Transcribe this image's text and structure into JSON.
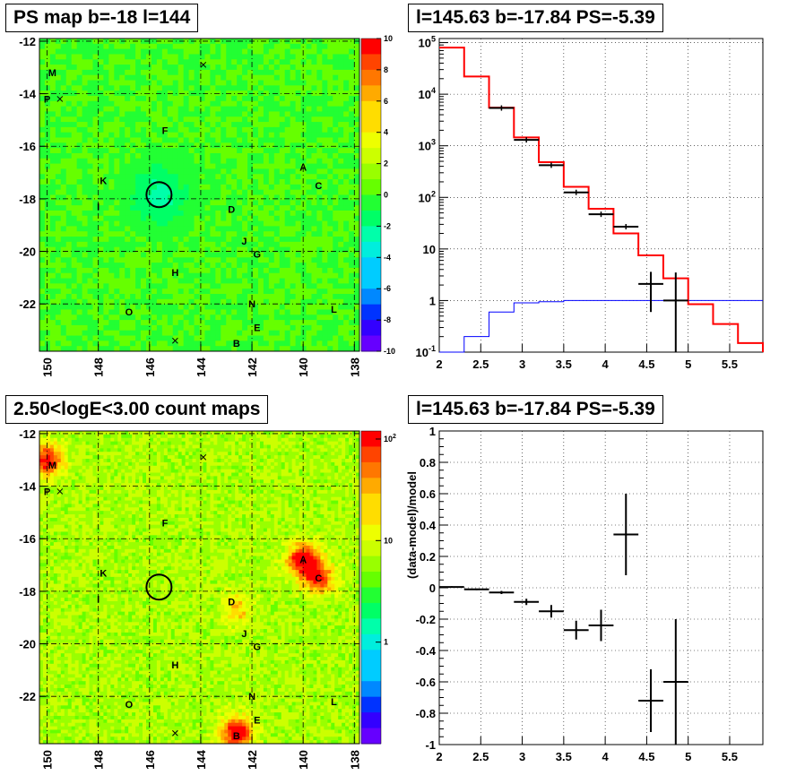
{
  "chart_data": [
    {
      "type": "heatmap",
      "title": "PS map b=-18 l=144",
      "x_ticks": [
        "150",
        "148",
        "146",
        "144",
        "142",
        "140",
        "138"
      ],
      "y_ticks": [
        "-12",
        "-14",
        "-16",
        "-18",
        "-20",
        "-22"
      ],
      "xlim": [
        150.3,
        137.8
      ],
      "ylim": [
        -23.8,
        -11.9
      ],
      "colorbar": {
        "ticks": [
          "10",
          "8",
          "6",
          "4",
          "2",
          "0",
          "-2",
          "-4",
          "-6",
          "-8",
          "-10"
        ],
        "range": [
          -10,
          10
        ]
      },
      "sources": [
        {
          "name": "M",
          "l": 149.8,
          "b": -13.2
        },
        {
          "name": "P",
          "l": 150.0,
          "b": -14.2
        },
        {
          "name": "F",
          "l": 145.4,
          "b": -15.4
        },
        {
          "name": "A",
          "l": 140.0,
          "b": -16.8
        },
        {
          "name": "C",
          "l": 139.4,
          "b": -17.5
        },
        {
          "name": "K",
          "l": 147.8,
          "b": -17.3
        },
        {
          "name": "I",
          "l": 148.0,
          "b": -18.3
        },
        {
          "name": "D",
          "l": 142.8,
          "b": -18.4
        },
        {
          "name": "J",
          "l": 142.3,
          "b": -19.6
        },
        {
          "name": "G",
          "l": 141.8,
          "b": -20.1
        },
        {
          "name": "H",
          "l": 145.0,
          "b": -20.8
        },
        {
          "name": "N",
          "l": 142.0,
          "b": -22.0
        },
        {
          "name": "L",
          "l": 138.8,
          "b": -22.2
        },
        {
          "name": "O",
          "l": 146.8,
          "b": -22.3
        },
        {
          "name": "E",
          "l": 141.8,
          "b": -22.9
        },
        {
          "name": "B",
          "l": 142.6,
          "b": -23.5
        }
      ],
      "crosses": [
        {
          "l": 143.9,
          "b": -12.9
        },
        {
          "l": 149.5,
          "b": -14.2
        },
        {
          "l": 145.0,
          "b": -23.4
        }
      ],
      "circle": {
        "l": 145.63,
        "b": -17.84
      }
    },
    {
      "type": "line",
      "title": "l=145.63 b=-17.84 PS=-5.39",
      "log_y": true,
      "xlim": [
        2,
        5.9
      ],
      "ylim": [
        0.1,
        120000
      ],
      "x_ticks": [
        "2",
        "2.5",
        "3",
        "3.5",
        "4",
        "4.5",
        "5",
        "5.5"
      ],
      "y_ticks": [
        "10^-1",
        "1",
        "10",
        "10^2",
        "10^3",
        "10^4",
        "10^5"
      ],
      "bin_edges": [
        2.0,
        2.3,
        2.6,
        2.9,
        3.2,
        3.5,
        3.8,
        4.1,
        4.4,
        4.7,
        5.0,
        5.3,
        5.6,
        5.9
      ],
      "series": [
        {
          "values": [
            80000,
            22000,
            5500,
            1450,
            480,
            160,
            60,
            20,
            7.5,
            2.7,
            0.85,
            0.35,
            0.15
          ],
          "color": "#ff0000"
        },
        {
          "values": [
            0.1,
            0.2,
            0.6,
            0.9,
            0.95,
            1,
            1,
            1,
            1,
            1,
            1,
            1,
            1
          ],
          "color": "#0000ff"
        },
        {
          "values": [
            null,
            null,
            5400,
            1300,
            420,
            125,
            47,
            27,
            2.1,
            1.0,
            null,
            null,
            null
          ],
          "yerr_lo": [
            0,
            0,
            0,
            0,
            0,
            0,
            0,
            0,
            1.5,
            0.9,
            0,
            0,
            0
          ],
          "yerr_hi": [
            0,
            0,
            0,
            0,
            0,
            0,
            0,
            0,
            1.5,
            2.5,
            0,
            0,
            0
          ],
          "color": "#000000"
        }
      ]
    },
    {
      "type": "heatmap",
      "title": "2.50<logE<3.00 count maps",
      "x_ticks": [
        "150",
        "148",
        "146",
        "144",
        "142",
        "140",
        "138"
      ],
      "y_ticks": [
        "-12",
        "-14",
        "-16",
        "-18",
        "-20",
        "-22"
      ],
      "xlim": [
        150.3,
        137.8
      ],
      "ylim": [
        -23.8,
        -11.9
      ],
      "log_color": true,
      "colorbar": {
        "ticks": [
          "10^2",
          "10",
          "1"
        ],
        "range": [
          0.1,
          120
        ]
      },
      "hotspots": [
        {
          "l": 140.0,
          "b": -16.8,
          "strength": 1.0
        },
        {
          "l": 139.4,
          "b": -17.5,
          "strength": 0.8
        },
        {
          "l": 150.0,
          "b": -13.0,
          "strength": 0.9
        },
        {
          "l": 142.6,
          "b": -23.4,
          "strength": 1.0
        },
        {
          "l": 142.6,
          "b": -18.7,
          "strength": 0.4
        }
      ],
      "sources": [
        {
          "name": "M",
          "l": 149.8,
          "b": -13.2
        },
        {
          "name": "P",
          "l": 150.0,
          "b": -14.2
        },
        {
          "name": "F",
          "l": 145.4,
          "b": -15.4
        },
        {
          "name": "A",
          "l": 140.0,
          "b": -16.8
        },
        {
          "name": "C",
          "l": 139.4,
          "b": -17.5
        },
        {
          "name": "K",
          "l": 147.8,
          "b": -17.3
        },
        {
          "name": "I",
          "l": 148.0,
          "b": -18.3
        },
        {
          "name": "D",
          "l": 142.8,
          "b": -18.4
        },
        {
          "name": "J",
          "l": 142.3,
          "b": -19.6
        },
        {
          "name": "G",
          "l": 141.8,
          "b": -20.1
        },
        {
          "name": "H",
          "l": 145.0,
          "b": -20.8
        },
        {
          "name": "N",
          "l": 142.0,
          "b": -22.0
        },
        {
          "name": "L",
          "l": 138.8,
          "b": -22.2
        },
        {
          "name": "O",
          "l": 146.8,
          "b": -22.3
        },
        {
          "name": "E",
          "l": 141.8,
          "b": -22.9
        },
        {
          "name": "B",
          "l": 142.6,
          "b": -23.5
        }
      ],
      "crosses": [
        {
          "l": 143.9,
          "b": -12.9
        },
        {
          "l": 149.5,
          "b": -14.2
        },
        {
          "l": 145.0,
          "b": -23.4
        }
      ],
      "circle": {
        "l": 145.63,
        "b": -17.84
      }
    },
    {
      "type": "scatter",
      "title": "l=145.63 b=-17.84 PS=-5.39",
      "ylabel": "(data-model)/model",
      "xlim": [
        2,
        5.9
      ],
      "ylim": [
        -1,
        1
      ],
      "x_ticks": [
        "2",
        "2.5",
        "3",
        "3.5",
        "4",
        "4.5",
        "5",
        "5.5"
      ],
      "y_ticks": [
        "1",
        "0.8",
        "0.6",
        "0.4",
        "0.2",
        "0",
        "-0.2",
        "-0.4",
        "-0.6",
        "-0.8",
        "-1"
      ],
      "points": [
        {
          "x": 2.15,
          "y": 0.005,
          "xerr": 0.15,
          "yerr": 0.005
        },
        {
          "x": 2.45,
          "y": -0.01,
          "xerr": 0.15,
          "yerr": 0.005
        },
        {
          "x": 2.75,
          "y": -0.03,
          "xerr": 0.15,
          "yerr": 0.01
        },
        {
          "x": 3.05,
          "y": -0.09,
          "xerr": 0.15,
          "yerr": 0.02
        },
        {
          "x": 3.35,
          "y": -0.15,
          "xerr": 0.15,
          "yerr": 0.04
        },
        {
          "x": 3.65,
          "y": -0.27,
          "xerr": 0.15,
          "yerr": 0.06
        },
        {
          "x": 3.95,
          "y": -0.24,
          "xerr": 0.15,
          "yerr": 0.1
        },
        {
          "x": 4.25,
          "y": 0.34,
          "xerr": 0.15,
          "yerr": 0.26
        },
        {
          "x": 4.55,
          "y": -0.72,
          "xerr": 0.15,
          "yerr": 0.2
        },
        {
          "x": 4.85,
          "y": -0.6,
          "xerr": 0.15,
          "yerr": 0.4
        }
      ]
    }
  ]
}
